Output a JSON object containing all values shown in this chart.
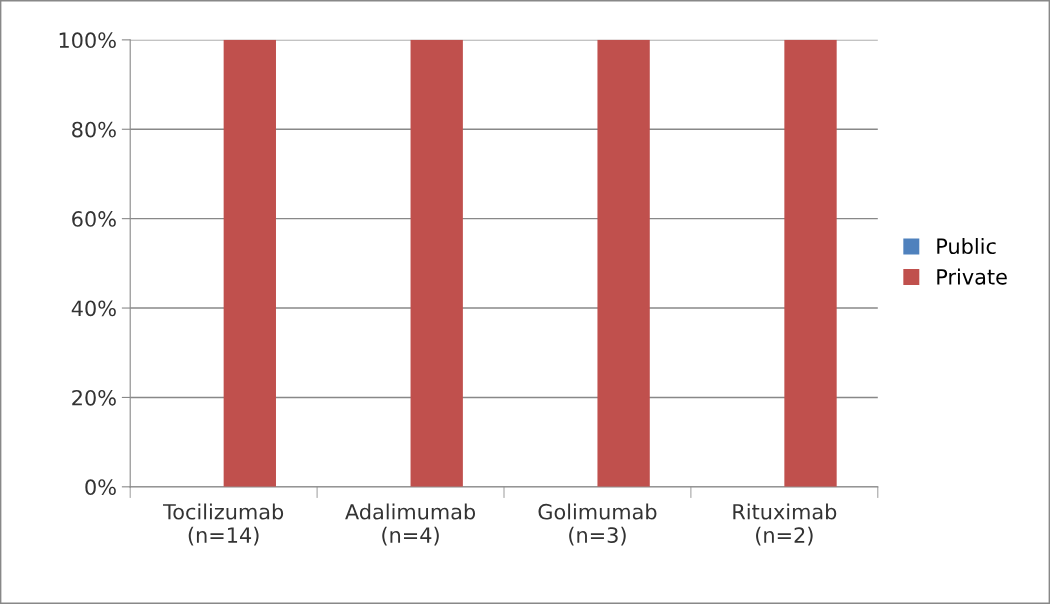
{
  "chart_data": {
    "type": "bar",
    "categories": [
      "Tocilizumab\n(n=14)",
      "Adalimumab\n(n=4)",
      "Golimumab\n(n=3)",
      "Rituximab\n(n=2)"
    ],
    "series": [
      {
        "name": "Public",
        "color": "#4f81bd",
        "values": [
          0,
          0,
          0,
          0
        ]
      },
      {
        "name": "Private",
        "color": "#c0504d",
        "values": [
          100,
          100,
          100,
          100
        ]
      }
    ],
    "ylim": [
      0,
      100
    ],
    "yticks": [
      {
        "value": 0,
        "label": "0%"
      },
      {
        "value": 20,
        "label": "20%"
      },
      {
        "value": 40,
        "label": "40%"
      },
      {
        "value": 60,
        "label": "60%"
      },
      {
        "value": 80,
        "label": "80%"
      },
      {
        "value": 100,
        "label": "100%"
      }
    ],
    "grid": "y",
    "legend": "right"
  }
}
